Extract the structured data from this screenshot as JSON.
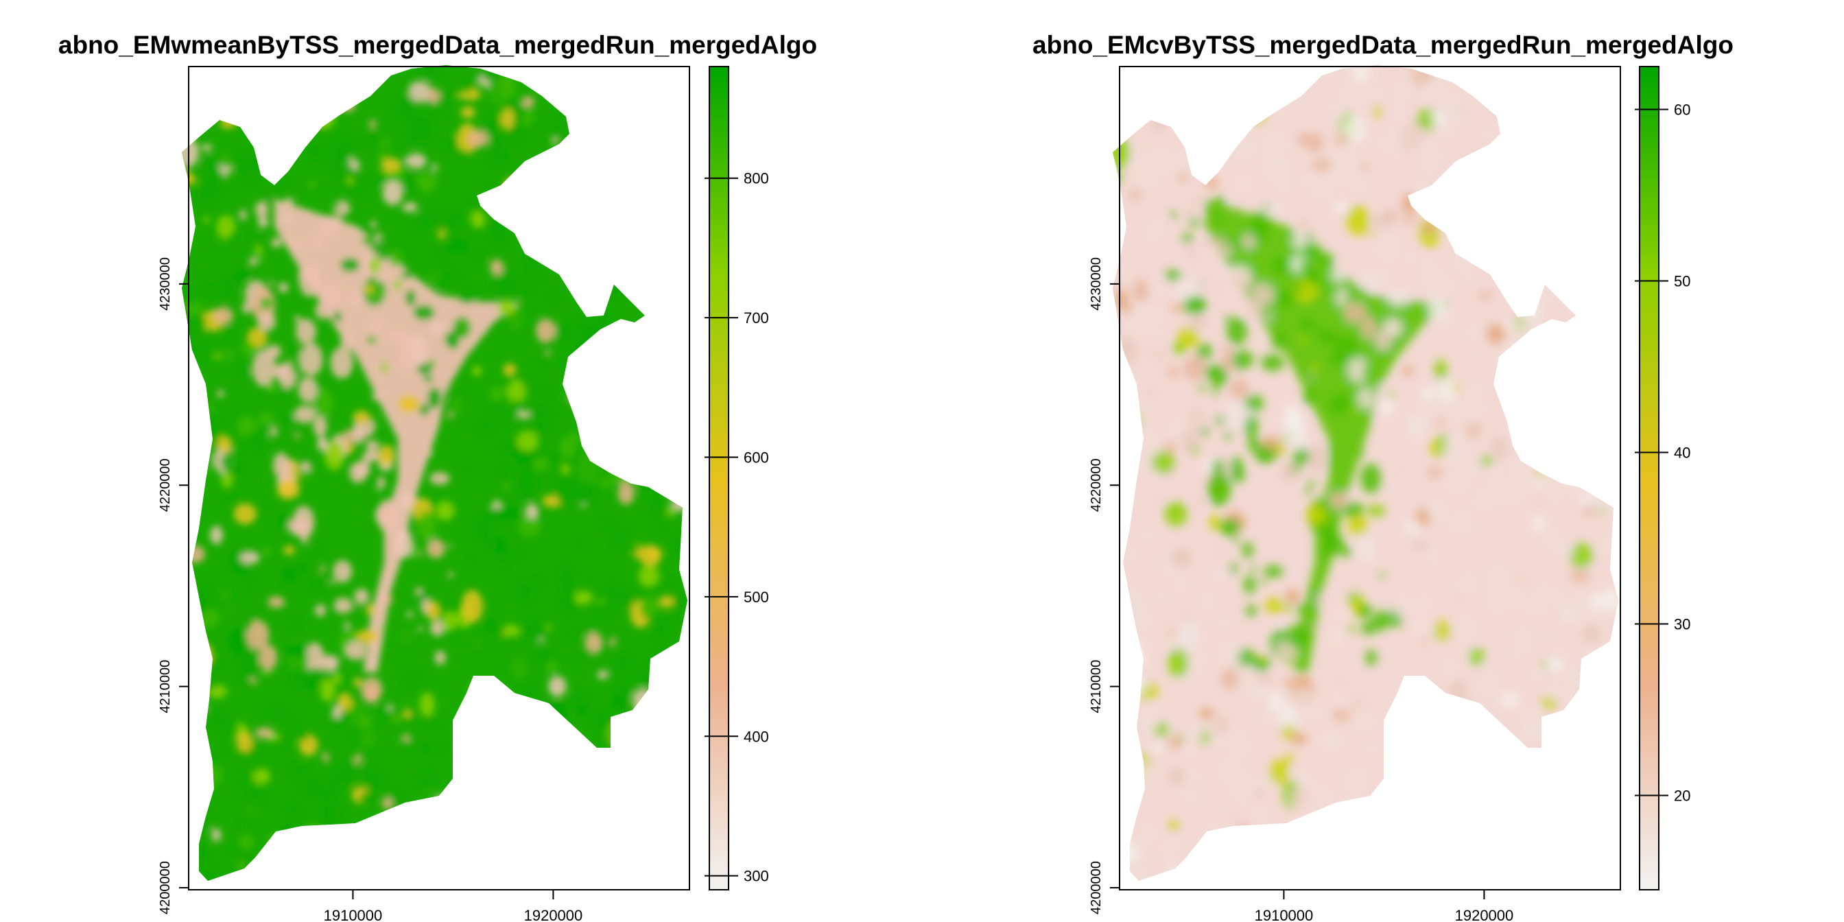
{
  "chart_data": [
    {
      "type": "heatmap",
      "title": "abno_EMwmeanByTSS_mergedData_mergedRun_mergedAlgo",
      "xlabel": "",
      "ylabel": "",
      "x_ticks": [
        1910000,
        1920000
      ],
      "y_ticks": [
        4200000,
        4210000,
        4220000,
        4230000
      ],
      "xlim": [
        1901800,
        1926800
      ],
      "ylim": [
        4199900,
        4240800
      ],
      "legend": {
        "position": "right",
        "range": [
          290,
          880
        ],
        "ticks": [
          300,
          400,
          500,
          600,
          700,
          800
        ]
      },
      "colors": {
        "low": "#f2f2f2",
        "mid_low": "#ecb28e",
        "mid": "#e6c21f",
        "mid_high": "#8bd000",
        "high": "#00a600"
      },
      "grid": false
    },
    {
      "type": "heatmap",
      "title": "abno_EMcvByTSS_mergedData_mergedRun_mergedAlgo",
      "xlabel": "",
      "ylabel": "",
      "x_ticks": [
        1910000,
        1920000
      ],
      "y_ticks": [
        4200000,
        4210000,
        4220000,
        4230000
      ],
      "xlim": [
        1901800,
        1926800
      ],
      "ylim": [
        4199900,
        4240800
      ],
      "legend": {
        "position": "right",
        "range": [
          14.5,
          62.5
        ],
        "ticks": [
          20,
          30,
          40,
          50,
          60
        ]
      },
      "colors": {
        "low": "#f2f2f2",
        "mid_low": "#ecb28e",
        "mid": "#e6c21f",
        "mid_high": "#8bd000",
        "high": "#00a600"
      },
      "grid": false
    }
  ]
}
